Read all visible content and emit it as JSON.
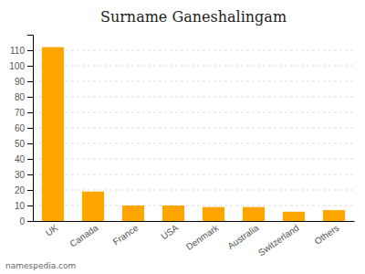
{
  "chart_data": {
    "type": "bar",
    "title": "Surname Ganeshalingam",
    "categories": [
      "UK",
      "Canada",
      "France",
      "USA",
      "Denmark",
      "Australia",
      "Switzerland",
      "Others"
    ],
    "values": [
      112,
      19,
      10,
      10,
      9,
      9,
      6,
      7
    ],
    "color": "#FFA500",
    "ylim": [
      0,
      120
    ],
    "yticks": [
      0,
      10,
      20,
      30,
      40,
      50,
      60,
      70,
      80,
      90,
      100,
      110
    ],
    "grid": true,
    "annotations": [
      "namespedia.com"
    ]
  }
}
